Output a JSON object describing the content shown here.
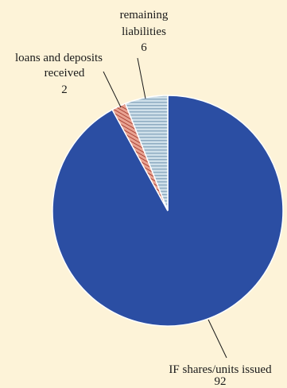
{
  "chart_data": {
    "type": "pie",
    "slices": [
      {
        "label_lines": [
          "IF shares/units issued"
        ],
        "value": 92,
        "value_text": "92",
        "color": "#2b4ea3",
        "pattern": "solid"
      },
      {
        "label_lines": [
          "loans and deposits",
          "received"
        ],
        "value": 2,
        "value_text": "2",
        "color": "#c9655a",
        "pattern": "diagonal-hatch"
      },
      {
        "label_lines": [
          "remaining",
          "liabilities"
        ],
        "value": 6,
        "value_text": "6",
        "color": "#9cbcd2",
        "pattern": "horizontal-lines"
      }
    ],
    "start": "12 o'clock",
    "direction": "clockwise"
  },
  "colors": {
    "background": "#fdf3d8",
    "slice_outline": "#ffffff",
    "leader_line": "#1a1a1a"
  }
}
